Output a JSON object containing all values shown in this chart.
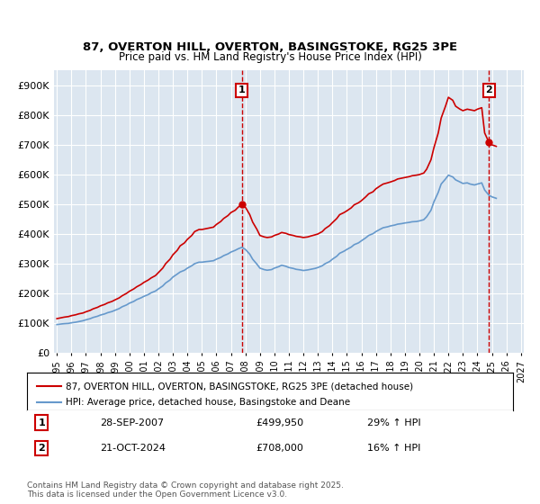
{
  "title": "87, OVERTON HILL, OVERTON, BASINGSTOKE, RG25 3PE",
  "subtitle": "Price paid vs. HM Land Registry's House Price Index (HPI)",
  "ylabel": "",
  "background_color": "#ffffff",
  "plot_bg_color": "#dce6f0",
  "grid_color": "#ffffff",
  "red_line_label": "87, OVERTON HILL, OVERTON, BASINGSTOKE, RG25 3PE (detached house)",
  "blue_line_label": "HPI: Average price, detached house, Basingstoke and Deane",
  "annotation1_box": "1",
  "annotation1_date": "28-SEP-2007",
  "annotation1_price": "£499,950",
  "annotation1_hpi": "29% ↑ HPI",
  "annotation2_box": "2",
  "annotation2_date": "21-OCT-2024",
  "annotation2_price": "£708,000",
  "annotation2_hpi": "16% ↑ HPI",
  "footer": "Contains HM Land Registry data © Crown copyright and database right 2025.\nThis data is licensed under the Open Government Licence v3.0.",
  "ylim": [
    0,
    950000
  ],
  "yticks": [
    0,
    100000,
    200000,
    300000,
    400000,
    500000,
    600000,
    700000,
    800000,
    900000
  ],
  "ytick_labels": [
    "£0",
    "£100K",
    "£200K",
    "£300K",
    "£400K",
    "£500K",
    "£600K",
    "£700K",
    "£800K",
    "£900K"
  ],
  "vline1_x": 2007.75,
  "vline2_x": 2024.8,
  "red_color": "#cc0000",
  "blue_color": "#6699cc",
  "vline_color": "#cc0000",
  "marker1_x": 2007.75,
  "marker1_y": 499950,
  "marker2_x": 2024.8,
  "marker2_y": 708000,
  "red_data": {
    "x": [
      1995.0,
      1995.3,
      1995.5,
      1995.8,
      1996.0,
      1996.3,
      1996.5,
      1996.8,
      1997.0,
      1997.3,
      1997.5,
      1997.8,
      1998.0,
      1998.3,
      1998.5,
      1998.8,
      1999.0,
      1999.3,
      1999.5,
      1999.8,
      2000.0,
      2000.3,
      2000.5,
      2000.8,
      2001.0,
      2001.3,
      2001.5,
      2001.8,
      2002.0,
      2002.3,
      2002.5,
      2002.8,
      2003.0,
      2003.3,
      2003.5,
      2003.8,
      2004.0,
      2004.3,
      2004.5,
      2004.8,
      2005.0,
      2005.3,
      2005.5,
      2005.8,
      2006.0,
      2006.3,
      2006.5,
      2006.8,
      2007.0,
      2007.3,
      2007.5,
      2007.75,
      2008.0,
      2008.3,
      2008.5,
      2008.8,
      2009.0,
      2009.3,
      2009.5,
      2009.8,
      2010.0,
      2010.3,
      2010.5,
      2010.8,
      2011.0,
      2011.3,
      2011.5,
      2011.8,
      2012.0,
      2012.3,
      2012.5,
      2012.8,
      2013.0,
      2013.3,
      2013.5,
      2013.8,
      2014.0,
      2014.3,
      2014.5,
      2014.8,
      2015.0,
      2015.3,
      2015.5,
      2015.8,
      2016.0,
      2016.3,
      2016.5,
      2016.8,
      2017.0,
      2017.3,
      2017.5,
      2017.8,
      2018.0,
      2018.3,
      2018.5,
      2018.8,
      2019.0,
      2019.3,
      2019.5,
      2019.8,
      2020.0,
      2020.3,
      2020.5,
      2020.8,
      2021.0,
      2021.3,
      2021.5,
      2021.8,
      2022.0,
      2022.3,
      2022.5,
      2022.8,
      2023.0,
      2023.3,
      2023.5,
      2023.8,
      2024.0,
      2024.3,
      2024.5,
      2024.8,
      2025.0,
      2025.3
    ],
    "y": [
      115000,
      118000,
      120000,
      122000,
      125000,
      128000,
      131000,
      134000,
      138000,
      143000,
      148000,
      153000,
      158000,
      163000,
      168000,
      173000,
      178000,
      185000,
      192000,
      200000,
      207000,
      215000,
      222000,
      230000,
      237000,
      245000,
      252000,
      260000,
      270000,
      285000,
      300000,
      315000,
      330000,
      345000,
      360000,
      370000,
      382000,
      395000,
      408000,
      415000,
      415000,
      418000,
      420000,
      423000,
      432000,
      442000,
      452000,
      462000,
      472000,
      480000,
      490000,
      499950,
      490000,
      465000,
      440000,
      415000,
      395000,
      390000,
      388000,
      390000,
      395000,
      400000,
      405000,
      402000,
      398000,
      395000,
      392000,
      390000,
      388000,
      390000,
      393000,
      397000,
      400000,
      408000,
      418000,
      428000,
      438000,
      452000,
      465000,
      472000,
      478000,
      488000,
      498000,
      505000,
      512000,
      525000,
      535000,
      542000,
      552000,
      562000,
      568000,
      572000,
      575000,
      580000,
      585000,
      588000,
      590000,
      593000,
      596000,
      598000,
      600000,
      605000,
      618000,
      650000,
      690000,
      740000,
      790000,
      830000,
      860000,
      850000,
      830000,
      820000,
      815000,
      820000,
      818000,
      815000,
      820000,
      825000,
      740000,
      708000,
      700000,
      695000
    ]
  },
  "blue_data": {
    "x": [
      1995.0,
      1995.3,
      1995.5,
      1995.8,
      1996.0,
      1996.3,
      1996.5,
      1996.8,
      1997.0,
      1997.3,
      1997.5,
      1997.8,
      1998.0,
      1998.3,
      1998.5,
      1998.8,
      1999.0,
      1999.3,
      1999.5,
      1999.8,
      2000.0,
      2000.3,
      2000.5,
      2000.8,
      2001.0,
      2001.3,
      2001.5,
      2001.8,
      2002.0,
      2002.3,
      2002.5,
      2002.8,
      2003.0,
      2003.3,
      2003.5,
      2003.8,
      2004.0,
      2004.3,
      2004.5,
      2004.8,
      2005.0,
      2005.3,
      2005.5,
      2005.8,
      2006.0,
      2006.3,
      2006.5,
      2006.8,
      2007.0,
      2007.3,
      2007.5,
      2007.75,
      2008.0,
      2008.3,
      2008.5,
      2008.8,
      2009.0,
      2009.3,
      2009.5,
      2009.8,
      2010.0,
      2010.3,
      2010.5,
      2010.8,
      2011.0,
      2011.3,
      2011.5,
      2011.8,
      2012.0,
      2012.3,
      2012.5,
      2012.8,
      2013.0,
      2013.3,
      2013.5,
      2013.8,
      2014.0,
      2014.3,
      2014.5,
      2014.8,
      2015.0,
      2015.3,
      2015.5,
      2015.8,
      2016.0,
      2016.3,
      2016.5,
      2016.8,
      2017.0,
      2017.3,
      2017.5,
      2017.8,
      2018.0,
      2018.3,
      2018.5,
      2018.8,
      2019.0,
      2019.3,
      2019.5,
      2019.8,
      2020.0,
      2020.3,
      2020.5,
      2020.8,
      2021.0,
      2021.3,
      2021.5,
      2021.8,
      2022.0,
      2022.3,
      2022.5,
      2022.8,
      2023.0,
      2023.3,
      2023.5,
      2023.8,
      2024.0,
      2024.3,
      2024.5,
      2024.8,
      2025.0,
      2025.3
    ],
    "y": [
      95000,
      97000,
      98000,
      99000,
      101000,
      103000,
      105000,
      108000,
      111000,
      115000,
      119000,
      123000,
      127000,
      131000,
      135000,
      139000,
      143000,
      149000,
      155000,
      161000,
      167000,
      173000,
      179000,
      185000,
      190000,
      196000,
      202000,
      208000,
      215000,
      225000,
      235000,
      245000,
      255000,
      265000,
      272000,
      278000,
      285000,
      293000,
      300000,
      305000,
      305000,
      307000,
      308000,
      310000,
      315000,
      321000,
      327000,
      333000,
      339000,
      345000,
      350000,
      355000,
      348000,
      332000,
      315000,
      298000,
      285000,
      280000,
      278000,
      280000,
      285000,
      290000,
      295000,
      291000,
      287000,
      284000,
      281000,
      279000,
      277000,
      279000,
      281000,
      284000,
      287000,
      293000,
      300000,
      307000,
      315000,
      325000,
      335000,
      342000,
      348000,
      356000,
      364000,
      370000,
      377000,
      387000,
      395000,
      401000,
      408000,
      416000,
      421000,
      424000,
      427000,
      430000,
      433000,
      435000,
      437000,
      439000,
      441000,
      442000,
      444000,
      448000,
      458000,
      480000,
      508000,
      540000,
      568000,
      585000,
      598000,
      592000,
      582000,
      575000,
      570000,
      572000,
      568000,
      565000,
      568000,
      572000,
      548000,
      530000,
      525000,
      520000
    ]
  },
  "x_tick_years": [
    1995,
    1996,
    1997,
    1998,
    1999,
    2000,
    2001,
    2002,
    2003,
    2004,
    2005,
    2006,
    2007,
    2008,
    2009,
    2010,
    2011,
    2012,
    2013,
    2014,
    2015,
    2016,
    2017,
    2018,
    2019,
    2020,
    2021,
    2022,
    2023,
    2024,
    2025,
    2026,
    2027
  ],
  "xlim": [
    1994.8,
    2027.2
  ]
}
